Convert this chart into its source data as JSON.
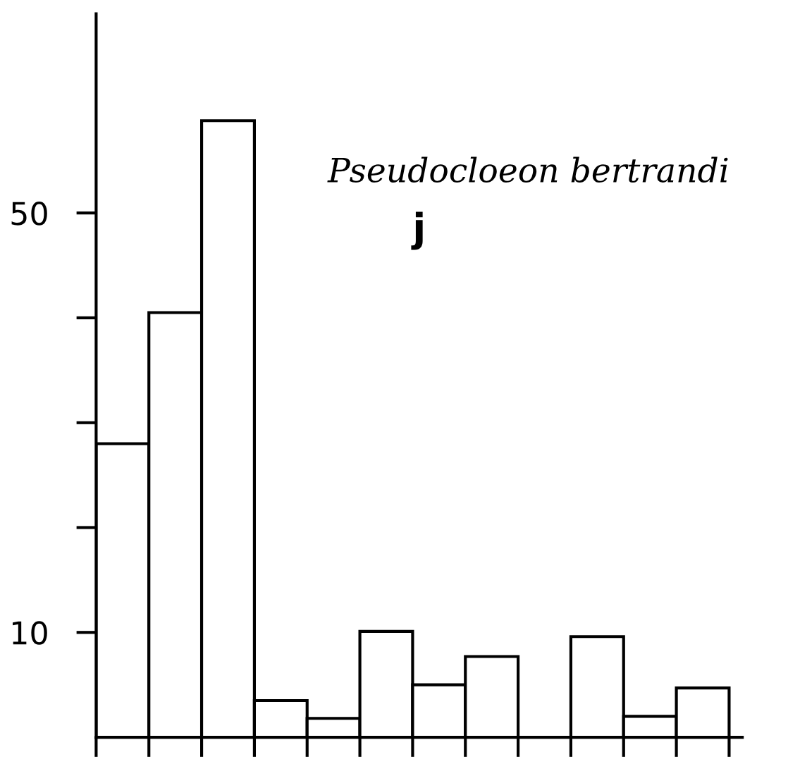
{
  "chart_data": {
    "type": "bar",
    "title": "Pseudocloeon bertrandi",
    "annotations": [
      "j"
    ],
    "categories": [
      null,
      null,
      null,
      null,
      null,
      null,
      null,
      null,
      null,
      null,
      null,
      null
    ],
    "values": [
      28,
      40.5,
      58.8,
      3.5,
      1.8,
      10.1,
      5,
      7.7,
      null,
      9.6,
      2,
      4.7
    ],
    "color": "#ffffff",
    "ylim": [
      0,
      69
    ],
    "yticks": [
      {
        "value": 10,
        "label": "10"
      },
      {
        "value": 20,
        "label": null
      },
      {
        "value": 30,
        "label": null
      },
      {
        "value": 40,
        "label": null
      },
      {
        "value": 50,
        "label": "50"
      }
    ],
    "grid": false
  }
}
